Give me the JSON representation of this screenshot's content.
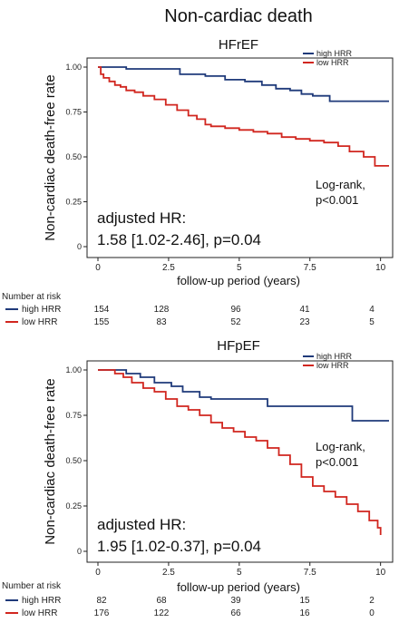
{
  "figure_title": "Non-cardiac death",
  "chart_data": [
    {
      "type": "line",
      "subtitle": "HFrEF",
      "xlabel": "follow-up period (years)",
      "ylabel": "Non-cardiac death-free rate",
      "xlim": [
        0,
        10.3
      ],
      "ylim": [
        0,
        1.0
      ],
      "xticks": [
        "0",
        "2.5",
        "5",
        "7.5",
        "10"
      ],
      "xtick_values": [
        0,
        2.5,
        5,
        7.5,
        10
      ],
      "yticks": [
        "0",
        "0.25",
        "0.50",
        "0.75",
        "1.00"
      ],
      "ytick_values": [
        0,
        0.25,
        0.5,
        0.75,
        1.0
      ],
      "legend": [
        "high HRR",
        "low HRR"
      ],
      "legend_placement": "top-right",
      "annotation_logrank": [
        "Log-rank,",
        "p<0.001"
      ],
      "annotation_hr": [
        "adjusted HR:",
        "1.58 [1.02-2.46], p=0.04"
      ],
      "series": [
        {
          "name": "high HRR",
          "color": "#1f3a7a",
          "x": [
            0,
            0.9,
            1.0,
            2.6,
            2.9,
            3.8,
            4.5,
            5.2,
            5.8,
            6.3,
            6.8,
            7.2,
            7.6,
            8.2,
            10.3
          ],
          "y": [
            1.0,
            1.0,
            0.99,
            0.99,
            0.96,
            0.95,
            0.93,
            0.92,
            0.9,
            0.88,
            0.87,
            0.85,
            0.84,
            0.81,
            0.81
          ]
        },
        {
          "name": "low HRR",
          "color": "#d1261f",
          "x": [
            0,
            0.1,
            0.2,
            0.4,
            0.6,
            0.8,
            1.0,
            1.3,
            1.6,
            2.0,
            2.4,
            2.8,
            3.2,
            3.5,
            3.8,
            4.0,
            4.5,
            5.0,
            5.5,
            6.0,
            6.5,
            7.0,
            7.5,
            8.0,
            8.5,
            8.9,
            9.4,
            9.8,
            10.3
          ],
          "y": [
            1.0,
            0.96,
            0.94,
            0.92,
            0.9,
            0.89,
            0.87,
            0.86,
            0.84,
            0.82,
            0.79,
            0.76,
            0.73,
            0.71,
            0.68,
            0.67,
            0.66,
            0.65,
            0.64,
            0.63,
            0.61,
            0.6,
            0.59,
            0.58,
            0.56,
            0.53,
            0.5,
            0.45,
            0.45
          ]
        }
      ],
      "risk_table": {
        "header": "Number at risk",
        "rows": [
          {
            "label": "high HRR",
            "color": "#1f3a7a",
            "values": [
              "154",
              "128",
              "96",
              "41",
              "4"
            ]
          },
          {
            "label": "low HRR",
            "color": "#d1261f",
            "values": [
              "155",
              "83",
              "52",
              "23",
              "5"
            ]
          }
        ]
      }
    },
    {
      "type": "line",
      "subtitle": "HFpEF",
      "xlabel": "follow-up period (years)",
      "ylabel": "Non-cardiac death-free rate",
      "xlim": [
        0,
        10.3
      ],
      "ylim": [
        0,
        1.0
      ],
      "xticks": [
        "0",
        "2.5",
        "5",
        "7.5",
        "10"
      ],
      "xtick_values": [
        0,
        2.5,
        5,
        7.5,
        10
      ],
      "yticks": [
        "0",
        "0.25",
        "0.50",
        "0.75",
        "1.00"
      ],
      "ytick_values": [
        0,
        0.25,
        0.5,
        0.75,
        1.0
      ],
      "legend": [
        "high HRR",
        "low HRR"
      ],
      "legend_placement": "top-right",
      "annotation_logrank": [
        "Log-rank,",
        "p<0.001"
      ],
      "annotation_hr": [
        "adjusted HR:",
        "1.95 [1.02-0.37], p=0.04"
      ],
      "series": [
        {
          "name": "high HRR",
          "color": "#1f3a7a",
          "x": [
            0,
            0.7,
            1.0,
            1.5,
            2.0,
            2.6,
            3.0,
            3.6,
            4.0,
            6.0,
            9.0,
            10.3
          ],
          "y": [
            1.0,
            1.0,
            0.98,
            0.96,
            0.93,
            0.91,
            0.88,
            0.85,
            0.84,
            0.8,
            0.72,
            0.72
          ]
        },
        {
          "name": "low HRR",
          "color": "#d1261f",
          "x": [
            0,
            0.6,
            0.9,
            1.2,
            1.6,
            2.0,
            2.4,
            2.8,
            3.2,
            3.6,
            4.0,
            4.4,
            4.8,
            5.2,
            5.6,
            6.0,
            6.4,
            6.8,
            7.2,
            7.6,
            8.0,
            8.4,
            8.8,
            9.2,
            9.6,
            9.9,
            10.0
          ],
          "y": [
            1.0,
            0.98,
            0.96,
            0.93,
            0.9,
            0.88,
            0.84,
            0.8,
            0.78,
            0.75,
            0.71,
            0.68,
            0.66,
            0.63,
            0.61,
            0.57,
            0.53,
            0.48,
            0.41,
            0.36,
            0.33,
            0.3,
            0.26,
            0.22,
            0.17,
            0.13,
            0.09
          ]
        }
      ],
      "risk_table": {
        "header": "Number at risk",
        "rows": [
          {
            "label": "high HRR",
            "color": "#1f3a7a",
            "values": [
              "82",
              "68",
              "39",
              "15",
              "2"
            ]
          },
          {
            "label": "low HRR",
            "color": "#d1261f",
            "values": [
              "176",
              "122",
              "66",
              "16",
              "0"
            ]
          }
        ]
      }
    }
  ]
}
